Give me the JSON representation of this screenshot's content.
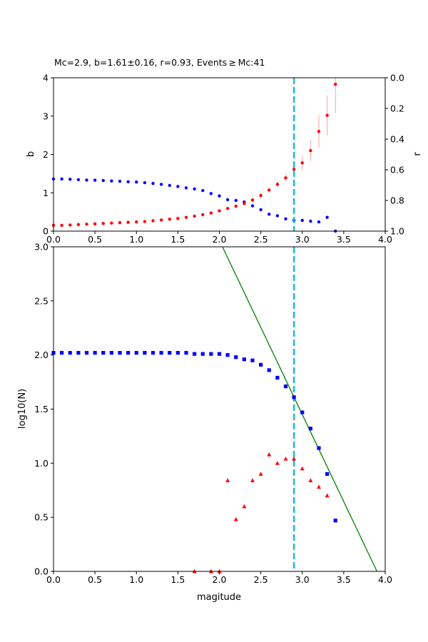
{
  "chart_data": [
    {
      "type": "scatter",
      "title": "Mc=2.9, b=1.61±0.16, r=0.93, Events ≥ Mc:41",
      "ylabel": "b",
      "y2label": "r",
      "xlim": [
        0,
        4
      ],
      "ylim": [
        0,
        4
      ],
      "y2lim": [
        1.0,
        0.0
      ],
      "xticks": [
        "0.0",
        "0.5",
        "1.0",
        "1.5",
        "2.0",
        "2.5",
        "3.0",
        "3.5",
        "4.0"
      ],
      "yticks": [
        "0",
        "1",
        "2",
        "3",
        "4"
      ],
      "y2ticks": [
        "0.0",
        "0.2",
        "0.4",
        "0.6",
        "0.8",
        "1.0"
      ],
      "mc_line": 2.9,
      "colors": {
        "b": "#ff0000",
        "r": "#0000ff",
        "mc": "#17becf",
        "err": "#f4a6a6"
      },
      "b_series": {
        "x": [
          0.0,
          0.1,
          0.2,
          0.3,
          0.4,
          0.5,
          0.6,
          0.7,
          0.8,
          0.9,
          1.0,
          1.1,
          1.2,
          1.3,
          1.4,
          1.5,
          1.6,
          1.7,
          1.8,
          1.9,
          2.0,
          2.1,
          2.2,
          2.3,
          2.4,
          2.5,
          2.6,
          2.7,
          2.8,
          2.9,
          3.0,
          3.1,
          3.2,
          3.3,
          3.4
        ],
        "y": [
          0.15,
          0.15,
          0.16,
          0.17,
          0.18,
          0.19,
          0.2,
          0.21,
          0.22,
          0.23,
          0.24,
          0.25,
          0.27,
          0.29,
          0.31,
          0.33,
          0.36,
          0.39,
          0.43,
          0.47,
          0.53,
          0.59,
          0.65,
          0.72,
          0.81,
          0.93,
          1.07,
          1.22,
          1.39,
          1.61,
          1.78,
          2.1,
          2.6,
          3.02,
          3.83
        ],
        "err": [
          0.01,
          0.01,
          0.01,
          0.01,
          0.01,
          0.01,
          0.01,
          0.01,
          0.01,
          0.01,
          0.01,
          0.01,
          0.01,
          0.01,
          0.01,
          0.01,
          0.02,
          0.02,
          0.02,
          0.02,
          0.03,
          0.03,
          0.04,
          0.04,
          0.05,
          0.06,
          0.07,
          0.08,
          0.1,
          0.16,
          0.2,
          0.28,
          0.42,
          0.52,
          0.75
        ]
      },
      "r_series": {
        "x": [
          0.0,
          0.1,
          0.2,
          0.3,
          0.4,
          0.5,
          0.6,
          0.7,
          0.8,
          0.9,
          1.0,
          1.1,
          1.2,
          1.3,
          1.4,
          1.5,
          1.6,
          1.7,
          1.8,
          1.9,
          2.0,
          2.1,
          2.2,
          2.3,
          2.4,
          2.5,
          2.6,
          2.7,
          2.8,
          2.9,
          3.0,
          3.1,
          3.2,
          3.3,
          3.4
        ],
        "y": [
          0.66,
          0.66,
          0.662,
          0.665,
          0.667,
          0.668,
          0.67,
          0.673,
          0.675,
          0.678,
          0.68,
          0.684,
          0.689,
          0.695,
          0.702,
          0.709,
          0.718,
          0.725,
          0.735,
          0.755,
          0.77,
          0.795,
          0.8,
          0.81,
          0.835,
          0.86,
          0.89,
          0.9,
          0.92,
          0.93,
          0.93,
          0.935,
          0.94,
          0.91,
          1.0
        ]
      }
    },
    {
      "type": "scatter",
      "xlabel": "magitude",
      "ylabel": "log10(N)",
      "xlim": [
        0,
        4
      ],
      "ylim": [
        0,
        3
      ],
      "xticks": [
        "0.0",
        "0.5",
        "1.0",
        "1.5",
        "2.0",
        "2.5",
        "3.0",
        "3.5",
        "4.0"
      ],
      "yticks": [
        "0.0",
        "0.5",
        "1.0",
        "1.5",
        "2.0",
        "2.5",
        "3.0"
      ],
      "mc_line": 2.9,
      "colors": {
        "cumulative": "#0000ff",
        "noncumulative": "#ff0000",
        "fit": "#008000",
        "mc": "#17becf"
      },
      "cumulative": {
        "x": [
          0.0,
          0.1,
          0.2,
          0.3,
          0.4,
          0.5,
          0.6,
          0.7,
          0.8,
          0.9,
          1.0,
          1.1,
          1.2,
          1.3,
          1.4,
          1.5,
          1.6,
          1.7,
          1.8,
          1.9,
          2.0,
          2.1,
          2.2,
          2.3,
          2.4,
          2.5,
          2.6,
          2.7,
          2.8,
          2.9,
          3.0,
          3.1,
          3.2,
          3.3,
          3.4
        ],
        "y": [
          2.02,
          2.02,
          2.02,
          2.02,
          2.02,
          2.02,
          2.02,
          2.02,
          2.02,
          2.02,
          2.02,
          2.02,
          2.02,
          2.02,
          2.02,
          2.02,
          2.02,
          2.01,
          2.01,
          2.01,
          2.01,
          2.0,
          1.98,
          1.96,
          1.95,
          1.91,
          1.86,
          1.79,
          1.71,
          1.61,
          1.47,
          1.32,
          1.14,
          0.9,
          0.47
        ]
      },
      "noncumulative": {
        "x": [
          1.7,
          1.9,
          2.0,
          2.1,
          2.2,
          2.3,
          2.4,
          2.5,
          2.6,
          2.7,
          2.8,
          2.9,
          3.0,
          3.1,
          3.2,
          3.3
        ],
        "y": [
          0.0,
          0.0,
          0.0,
          0.84,
          0.48,
          0.6,
          0.84,
          0.9,
          1.08,
          1.0,
          1.04,
          1.04,
          0.95,
          0.84,
          0.78,
          0.7
        ]
      },
      "fit": {
        "a": 6.28,
        "b": 1.61
      }
    }
  ]
}
